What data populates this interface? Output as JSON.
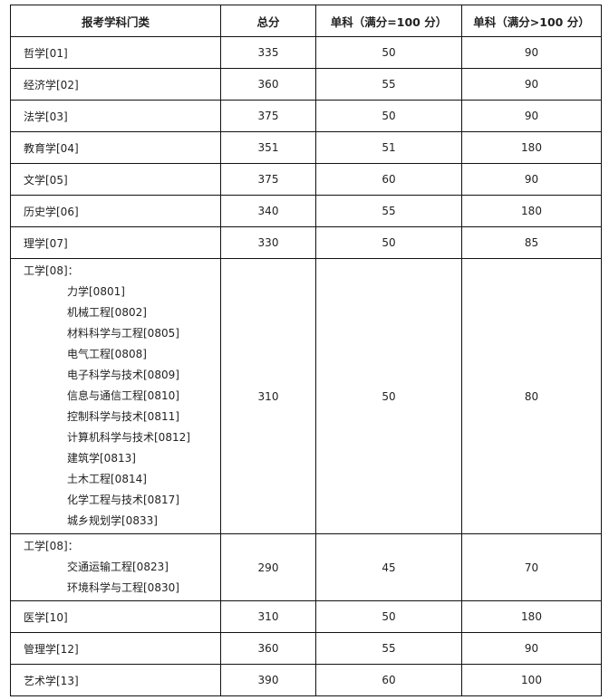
{
  "headers": [
    "报考学科门类",
    "总分",
    "单科（满分=100 分）",
    "单科（满分>100 分）"
  ],
  "rows": [
    {
      "name": "哲学[01]",
      "total": "335",
      "s100": "50",
      "sover": "90"
    },
    {
      "name": "经济学[02]",
      "total": "360",
      "s100": "55",
      "sover": "90"
    },
    {
      "name": "法学[03]",
      "total": "375",
      "s100": "50",
      "sover": "90"
    },
    {
      "name": "教育学[04]",
      "total": "351",
      "s100": "51",
      "sover": "180"
    },
    {
      "name": "文学[05]",
      "total": "375",
      "s100": "60",
      "sover": "90"
    },
    {
      "name": "历史学[06]",
      "total": "340",
      "s100": "55",
      "sover": "180"
    },
    {
      "name": "理学[07]",
      "total": "330",
      "s100": "50",
      "sover": "85"
    }
  ],
  "eng1": {
    "name": "工学[08]：",
    "subs": [
      "力学[0801]",
      "机械工程[0802]",
      "材料科学与工程[0805]",
      "电气工程[0808]",
      "电子科学与技术[0809]",
      "信息与通信工程[0810]",
      "控制科学与技术[0811]",
      "计算机科学与技术[0812]",
      "建筑学[0813]",
      "土木工程[0814]",
      "化学工程与技术[0817]",
      "城乡规划学[0833]"
    ],
    "total": "310",
    "s100": "50",
    "sover": "80"
  },
  "eng2": {
    "name": "工学[08]：",
    "subs": [
      "交通运输工程[0823]",
      "环境科学与工程[0830]"
    ],
    "total": "290",
    "s100": "45",
    "sover": "70"
  },
  "rows2": [
    {
      "name": "医学[10]",
      "total": "310",
      "s100": "50",
      "sover": "180"
    },
    {
      "name": "管理学[12]",
      "total": "360",
      "s100": "55",
      "sover": "90"
    },
    {
      "name": "艺术学[13]",
      "total": "390",
      "s100": "60",
      "sover": "100"
    }
  ]
}
